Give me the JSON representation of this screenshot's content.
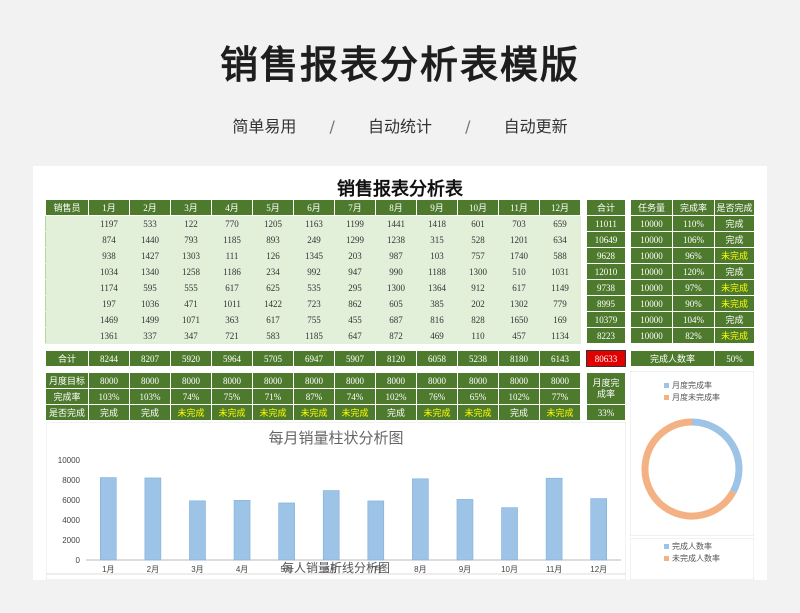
{
  "banner": {
    "title": "销售报表分析表模版",
    "tags": [
      "简单易用",
      "自动统计",
      "自动更新"
    ],
    "separator": "/"
  },
  "sheet": {
    "title": "销售报表分析表",
    "header": {
      "salesperson": "销售员",
      "months": [
        "1月",
        "2月",
        "3月",
        "4月",
        "5月",
        "6月",
        "7月",
        "8月",
        "9月",
        "10月",
        "11月",
        "12月"
      ],
      "total": "合计"
    },
    "rows": [
      {
        "values": [
          1197,
          533,
          122,
          770,
          1205,
          1163,
          1199,
          1441,
          1418,
          601,
          703,
          659
        ],
        "total": 11011
      },
      {
        "values": [
          874,
          1440,
          793,
          1185,
          893,
          249,
          1299,
          1238,
          315,
          528,
          1201,
          634
        ],
        "total": 10649
      },
      {
        "values": [
          938,
          1427,
          1303,
          111,
          126,
          1345,
          203,
          987,
          103,
          757,
          1740,
          588
        ],
        "total": 9628
      },
      {
        "values": [
          1034,
          1340,
          1258,
          1186,
          234,
          992,
          947,
          990,
          1188,
          1300,
          510,
          1031
        ],
        "total": 12010
      },
      {
        "values": [
          1174,
          595,
          555,
          617,
          625,
          535,
          295,
          1300,
          1364,
          912,
          617,
          1149
        ],
        "total": 9738
      },
      {
        "values": [
          197,
          1036,
          471,
          1011,
          1422,
          723,
          862,
          605,
          385,
          202,
          1302,
          779
        ],
        "total": 8995
      },
      {
        "values": [
          1469,
          1499,
          1071,
          363,
          617,
          755,
          455,
          687,
          816,
          828,
          1650,
          169
        ],
        "total": 10379
      },
      {
        "values": [
          1361,
          337,
          347,
          721,
          583,
          1185,
          647,
          872,
          469,
          110,
          457,
          1134
        ],
        "total": 8223
      }
    ],
    "task_table": {
      "headers": [
        "任务量",
        "完成率",
        "是否完成"
      ],
      "rows": [
        {
          "target": 10000,
          "rate": "110%",
          "status": "完成"
        },
        {
          "target": 10000,
          "rate": "106%",
          "status": "完成"
        },
        {
          "target": 10000,
          "rate": "96%",
          "status": "未完成"
        },
        {
          "target": 10000,
          "rate": "120%",
          "status": "完成"
        },
        {
          "target": 10000,
          "rate": "97%",
          "status": "未完成"
        },
        {
          "target": 10000,
          "rate": "90%",
          "status": "未完成"
        },
        {
          "target": 10000,
          "rate": "104%",
          "status": "完成"
        },
        {
          "target": 10000,
          "rate": "82%",
          "status": "未完成"
        }
      ]
    },
    "totals": {
      "label": "合计",
      "values": [
        8244,
        8207,
        5920,
        5964,
        5705,
        6947,
        5907,
        8120,
        6058,
        5238,
        8180,
        6143
      ],
      "grand_total": 80633,
      "people_rate_label": "完成人数率",
      "people_rate": "50%"
    },
    "monthly": {
      "target_label": "月度目标",
      "targets": [
        8000,
        8000,
        8000,
        8000,
        8000,
        8000,
        8000,
        8000,
        8000,
        8000,
        8000,
        8000
      ],
      "rate_label": "完成率",
      "rates": [
        "103%",
        "103%",
        "74%",
        "75%",
        "71%",
        "87%",
        "74%",
        "102%",
        "76%",
        "65%",
        "102%",
        "77%"
      ],
      "done_label": "是否完成",
      "done": [
        "完成",
        "完成",
        "未完成",
        "未完成",
        "未完成",
        "未完成",
        "未完成",
        "完成",
        "未完成",
        "未完成",
        "完成",
        "未完成"
      ],
      "month_rate_label_1": "月度完",
      "month_rate_label_2": "成率",
      "month_rate": "33%"
    },
    "bar_chart_title": "每月销量柱状分析图",
    "line_chart_title": "每人销量折线分析图"
  },
  "chart_data": [
    {
      "type": "bar",
      "title": "每月销量柱状分析图",
      "categories": [
        "1月",
        "2月",
        "3月",
        "4月",
        "5月",
        "6月",
        "7月",
        "8月",
        "9月",
        "10月",
        "11月",
        "12月"
      ],
      "values": [
        8244,
        8207,
        5920,
        5964,
        5705,
        6947,
        5907,
        8120,
        6058,
        5238,
        8180,
        6143
      ],
      "yticks": [
        0,
        2000,
        4000,
        6000,
        8000,
        10000
      ],
      "ylim": [
        0,
        10000
      ],
      "color": "#9dc3e6"
    },
    {
      "type": "pie",
      "legend": [
        "月度完成率",
        "月度未完成率"
      ],
      "values": [
        33,
        67
      ],
      "colors": [
        "#9dc3e6",
        "#f4b183"
      ]
    },
    {
      "type": "pie",
      "legend": [
        "完成人数率",
        "未完成人数率"
      ],
      "colors": [
        "#9dc3e6",
        "#f4b183"
      ]
    }
  ]
}
